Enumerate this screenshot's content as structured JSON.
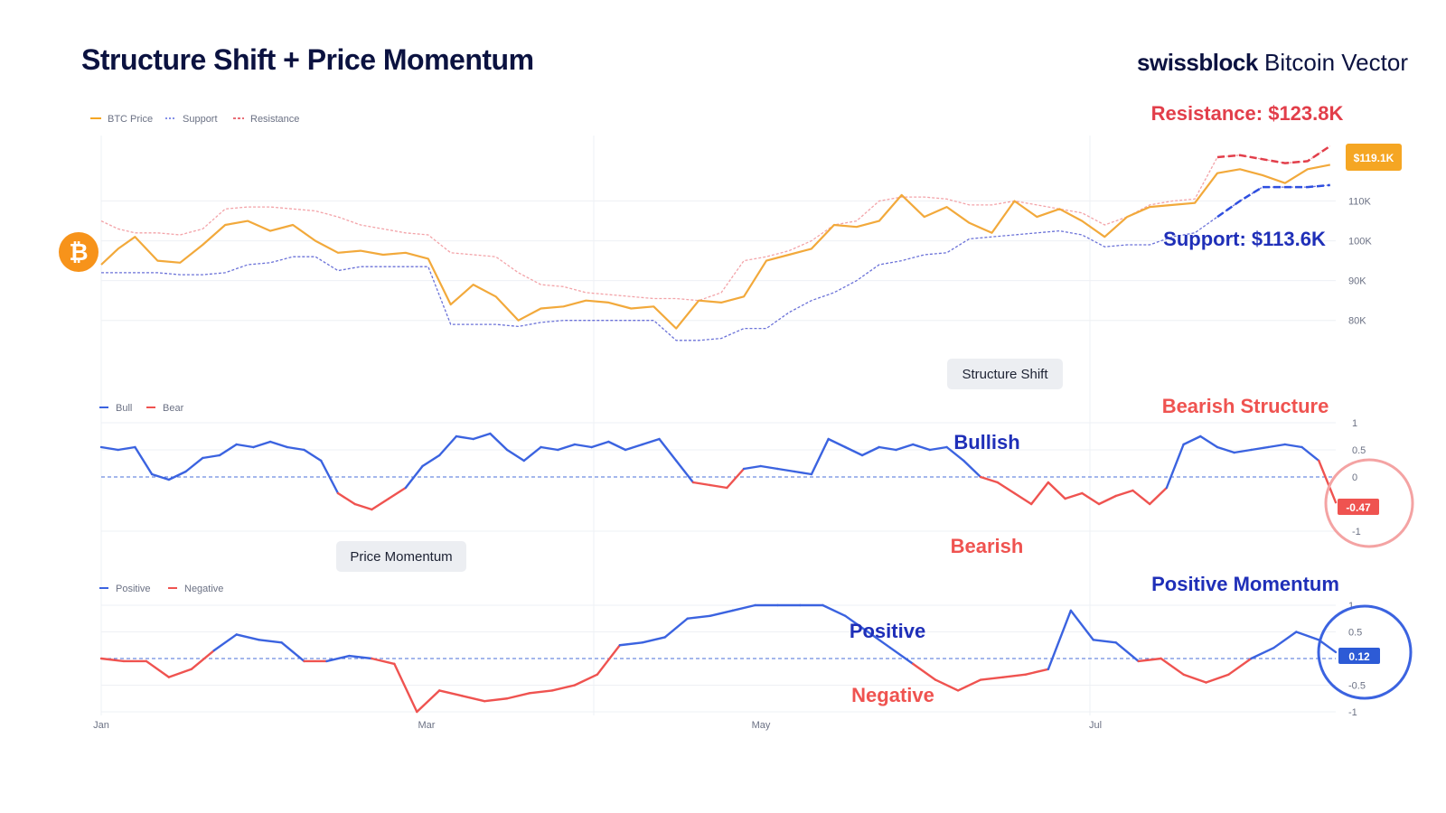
{
  "title": "Structure Shift + Price Momentum",
  "brand": {
    "name": "swissblock",
    "product": "Bitcoin Vector"
  },
  "colors": {
    "navy": "#0b1240",
    "orange": "#f5a623",
    "blue": "#3b63e0",
    "red": "#ef5350",
    "resistance": "#e23e4a",
    "support": "#2d35c7"
  },
  "annotations": {
    "resistance": "Resistance: $123.8K",
    "support": "Support: $113.6K",
    "bearish_structure": "Bearish Structure",
    "bullish": "Bullish",
    "bearish": "Bearish",
    "positive_momentum": "Positive Momentum",
    "positive": "Positive",
    "negative": "Negative",
    "price_tag": "$119.1K",
    "structure_tag": "-0.47",
    "momentum_tag": "0.12"
  },
  "pills": {
    "structure": "Structure Shift",
    "momentum": "Price Momentum"
  },
  "chart_data": [
    {
      "type": "line",
      "title": "BTC Price",
      "legend": [
        "BTC Price",
        "Support",
        "Resistance"
      ],
      "y_ticks": [
        "110K",
        "100K",
        "90K",
        "80K"
      ],
      "x_ticks": [
        "Jan",
        "Mar",
        "May",
        "Jul"
      ],
      "ylim": [
        72000,
        126000
      ],
      "x": [
        0,
        3,
        6,
        10,
        14,
        18,
        22,
        26,
        30,
        34,
        38,
        42,
        46,
        50,
        54,
        58,
        62,
        66,
        70,
        74,
        78,
        82,
        86,
        90,
        94,
        98,
        102,
        106,
        110,
        114,
        118,
        122,
        126,
        130,
        134,
        138,
        142,
        146,
        150,
        154,
        158,
        162,
        166,
        170,
        174,
        178,
        182,
        186,
        190,
        194,
        198,
        202,
        206,
        210,
        214,
        218
      ],
      "series": [
        {
          "name": "BTC Price",
          "values": [
            94000,
            98000,
            101000,
            95000,
            94500,
            99000,
            104000,
            105000,
            102500,
            104000,
            100000,
            97000,
            97500,
            96500,
            97000,
            95500,
            84000,
            89000,
            86000,
            80000,
            83000,
            83500,
            85000,
            84500,
            83000,
            83500,
            78000,
            85000,
            84500,
            86000,
            95000,
            96500,
            98000,
            104000,
            103500,
            105000,
            111500,
            106000,
            108500,
            104500,
            102000,
            110000,
            106000,
            108000,
            105000,
            101000,
            106000,
            108500,
            109000,
            109500,
            117000,
            118000,
            116500,
            114500,
            118000,
            119100
          ]
        },
        {
          "name": "Support",
          "values": [
            92000,
            92000,
            92000,
            92000,
            91500,
            91500,
            92000,
            94000,
            94500,
            96000,
            96000,
            92500,
            93500,
            93500,
            93500,
            93500,
            79000,
            79000,
            79000,
            78500,
            79500,
            80000,
            80000,
            80000,
            80000,
            80000,
            75000,
            75000,
            75500,
            78000,
            78000,
            82000,
            85000,
            87000,
            90000,
            94000,
            95000,
            96500,
            97000,
            100500,
            101000,
            101500,
            102000,
            102500,
            101500,
            98500,
            99000,
            99000,
            101000,
            102000,
            106000,
            110000,
            113500,
            113500,
            113500,
            114000
          ]
        },
        {
          "name": "Resistance",
          "values": [
            105000,
            103000,
            102000,
            102000,
            101500,
            103000,
            108000,
            108500,
            108500,
            108000,
            107500,
            106000,
            104000,
            103000,
            102000,
            101500,
            97000,
            96500,
            96000,
            92000,
            89000,
            88500,
            87000,
            86500,
            86000,
            85500,
            85500,
            85000,
            87000,
            95000,
            96000,
            97500,
            100000,
            104000,
            105000,
            110000,
            111000,
            111000,
            110500,
            109000,
            109000,
            110000,
            109000,
            108000,
            107000,
            104000,
            106000,
            109000,
            110000,
            110500,
            121000,
            121500,
            120500,
            119500,
            120000,
            123800
          ]
        }
      ]
    },
    {
      "type": "line",
      "title": "Structure Shift",
      "legend": [
        "Bull",
        "Bear"
      ],
      "y_ticks": [
        "1",
        "0.5",
        "0",
        "-1"
      ],
      "ylim": [
        -1,
        1
      ],
      "x": [
        0,
        3,
        6,
        9,
        12,
        15,
        18,
        21,
        24,
        27,
        30,
        33,
        36,
        39,
        42,
        45,
        48,
        51,
        54,
        57,
        60,
        63,
        66,
        69,
        72,
        75,
        78,
        81,
        84,
        87,
        90,
        93,
        96,
        99,
        102,
        105,
        108,
        111,
        114,
        117,
        120,
        123,
        126,
        129,
        132,
        135,
        138,
        141,
        144,
        147,
        150,
        153,
        156,
        159,
        162,
        165,
        168,
        171,
        174,
        177,
        180,
        183,
        186,
        189,
        192,
        195,
        198,
        201,
        204,
        207,
        210,
        213,
        216,
        219
      ],
      "series": [
        {
          "name": "Structure",
          "values": [
            0.55,
            0.5,
            0.55,
            0.05,
            -0.05,
            0.1,
            0.35,
            0.4,
            0.6,
            0.55,
            0.65,
            0.55,
            0.5,
            0.3,
            -0.3,
            -0.5,
            -0.6,
            -0.4,
            -0.2,
            0.2,
            0.4,
            0.75,
            0.7,
            0.8,
            0.5,
            0.3,
            0.55,
            0.5,
            0.6,
            0.55,
            0.65,
            0.5,
            0.6,
            0.7,
            0.3,
            -0.1,
            -0.15,
            -0.2,
            0.15,
            0.2,
            0.15,
            0.1,
            0.05,
            0.7,
            0.55,
            0.4,
            0.55,
            0.5,
            0.6,
            0.5,
            0.55,
            0.3,
            0.0,
            -0.1,
            -0.3,
            -0.5,
            -0.1,
            -0.4,
            -0.3,
            -0.5,
            -0.35,
            -0.25,
            -0.5,
            -0.2,
            0.6,
            0.75,
            0.55,
            0.45,
            0.5,
            0.55,
            0.6,
            0.55,
            0.3,
            -0.47
          ]
        }
      ]
    },
    {
      "type": "line",
      "title": "Price Momentum",
      "legend": [
        "Positive",
        "Negative"
      ],
      "y_ticks": [
        "1",
        "0.5",
        "-0.5",
        "-1"
      ],
      "x_ticks": [
        "Jan",
        "Mar",
        "May",
        "Jul"
      ],
      "ylim": [
        -1,
        1
      ],
      "x": [
        0,
        4,
        8,
        12,
        16,
        20,
        24,
        28,
        32,
        36,
        40,
        44,
        48,
        52,
        56,
        60,
        64,
        68,
        72,
        76,
        80,
        84,
        88,
        92,
        96,
        100,
        104,
        108,
        112,
        116,
        120,
        124,
        128,
        132,
        136,
        140,
        144,
        148,
        152,
        156,
        160,
        164,
        168,
        172,
        176,
        180,
        184,
        188,
        192,
        196,
        200,
        204,
        208,
        212,
        216,
        219
      ],
      "series": [
        {
          "name": "Momentum",
          "values": [
            0.0,
            -0.05,
            -0.05,
            -0.35,
            -0.2,
            0.15,
            0.45,
            0.35,
            0.3,
            -0.05,
            -0.05,
            0.05,
            0.0,
            -0.1,
            -1.0,
            -0.6,
            -0.7,
            -0.8,
            -0.75,
            -0.65,
            -0.6,
            -0.5,
            -0.3,
            0.25,
            0.3,
            0.4,
            0.75,
            0.8,
            0.9,
            1.0,
            1.0,
            1.0,
            1.0,
            0.8,
            0.5,
            0.2,
            -0.1,
            -0.4,
            -0.6,
            -0.4,
            -0.35,
            -0.3,
            -0.2,
            0.9,
            0.35,
            0.3,
            -0.05,
            0.0,
            -0.3,
            -0.45,
            -0.3,
            0.0,
            0.2,
            0.5,
            0.35,
            0.12
          ]
        }
      ]
    }
  ]
}
